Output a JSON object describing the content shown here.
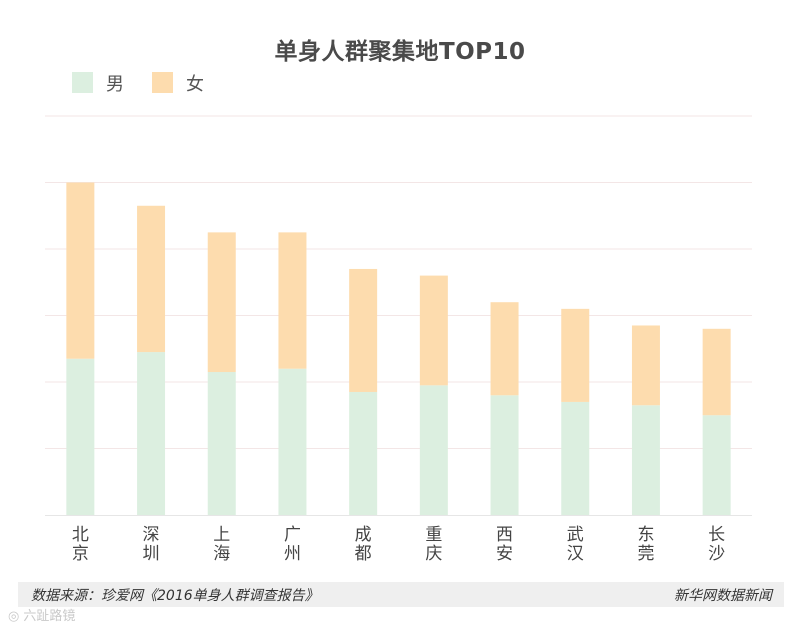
{
  "chart_data": {
    "type": "bar",
    "stacked": true,
    "title": "单身人群聚集地TOP10",
    "categories": [
      "北京",
      "深圳",
      "上海",
      "广州",
      "成都",
      "重庆",
      "西安",
      "武汉",
      "东莞",
      "长沙"
    ],
    "series": [
      {
        "name": "男",
        "color": "#dcefe0",
        "values": [
          47,
          49,
          43,
          44,
          37,
          39,
          36,
          34,
          33,
          30
        ]
      },
      {
        "name": "女",
        "color": "#fddcae",
        "values": [
          53,
          44,
          42,
          41,
          37,
          33,
          28,
          28,
          24,
          26
        ]
      }
    ],
    "ylim": [
      0,
      120
    ],
    "y_gridlines": [
      20,
      40,
      60,
      80,
      100,
      120
    ],
    "y_axis_labels_shown": false,
    "xlabel": "",
    "ylabel": "",
    "legend_position": "top-left"
  },
  "colors": {
    "male": "#dcefe0",
    "female": "#fddcae",
    "gridline": "#f3e6e6",
    "footer_bg": "#efefef"
  },
  "footer": {
    "source": "数据来源：珍爱网《2016单身人群调查报告》",
    "credit": "新华网数据新闻"
  },
  "watermark": {
    "icon": "camera-icon",
    "text": "六趾路镜"
  }
}
